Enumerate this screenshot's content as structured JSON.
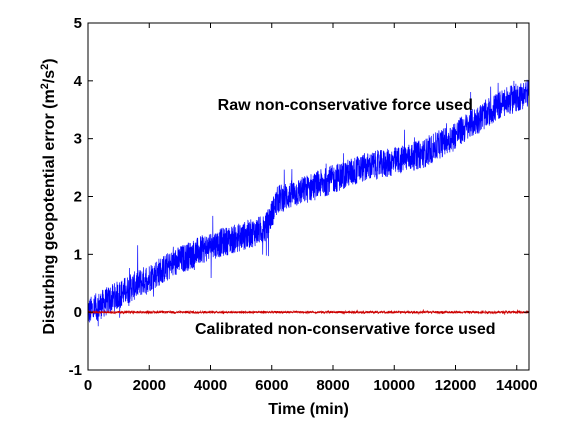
{
  "chart_data": {
    "type": "line",
    "xlabel": "Time (min)",
    "ylabel": "Disturbing geopotential error (m²/s²)",
    "xlim": [
      0,
      14400
    ],
    "ylim": [
      -1,
      5
    ],
    "xticks": [
      0,
      2000,
      4000,
      6000,
      8000,
      10000,
      12000,
      14000
    ],
    "yticks": [
      -1,
      0,
      1,
      2,
      3,
      4,
      5
    ],
    "grid": false,
    "series": [
      {
        "color": "#0000ff",
        "x": [
          0,
          1000,
          2000,
          3000,
          4000,
          5000,
          5800,
          6200,
          7000,
          8000,
          9000,
          10000,
          11000,
          11800,
          12500,
          13500,
          14400
        ],
        "y": [
          0.0,
          0.3,
          0.6,
          0.9,
          1.15,
          1.3,
          1.45,
          1.95,
          2.1,
          2.3,
          2.5,
          2.6,
          2.75,
          3.0,
          3.25,
          3.6,
          3.8
        ],
        "noise_amplitude": 0.25
      },
      {
        "color": "#cc0000",
        "x": [
          0,
          14400
        ],
        "y": [
          0.0,
          0.0
        ],
        "noise_amplitude": 0.02
      }
    ],
    "annotations": [
      {
        "text": "Raw non-conservative force used",
        "x": 8400,
        "y": 3.5
      },
      {
        "text": "Calibrated non-conservative force used",
        "x": 8400,
        "y": -0.38
      }
    ]
  }
}
